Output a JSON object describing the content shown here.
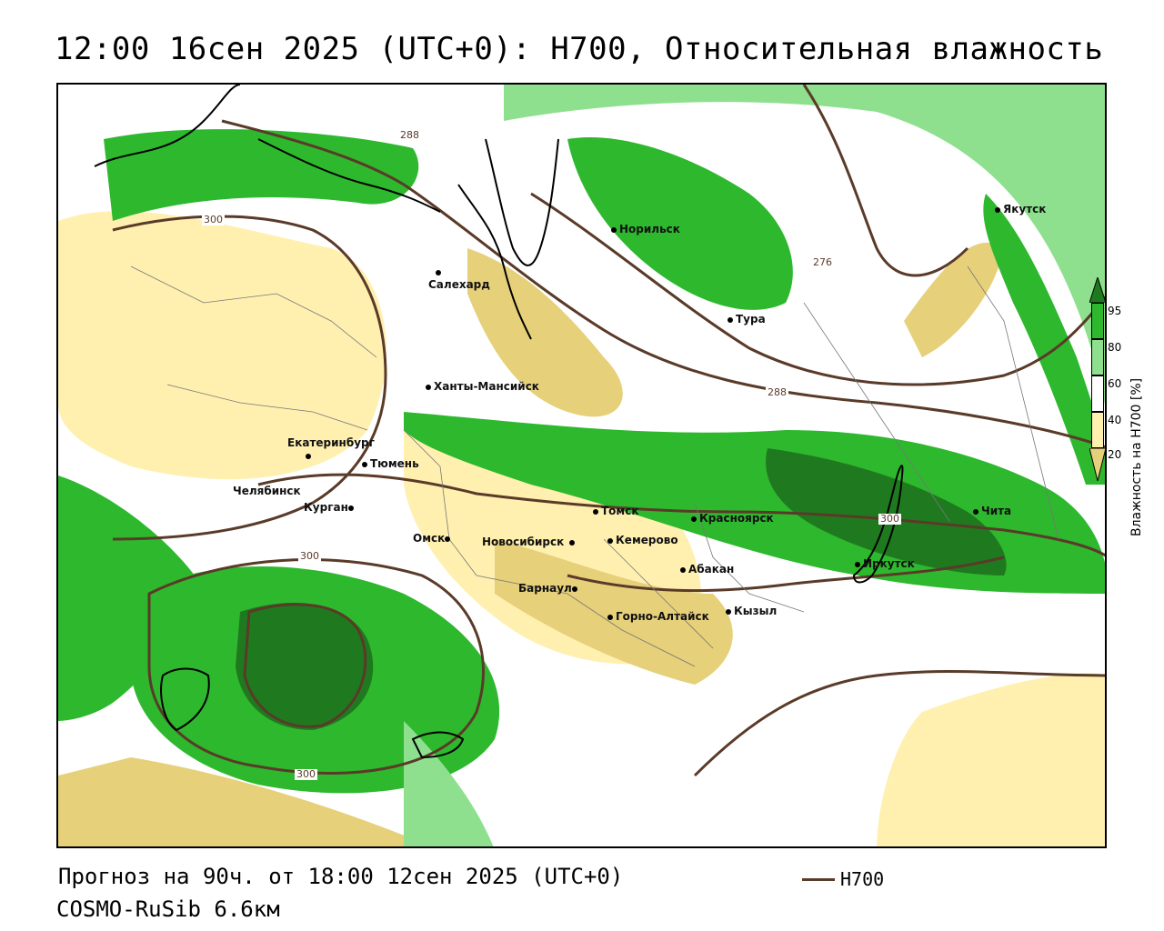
{
  "title": "12:00 16сен 2025 (UTC+0): Н700, Относительная влажность",
  "footer": {
    "forecast": "Прогноз на 90ч. от 18:00 12сен 2025 (UTC+0)",
    "model": "COSMO-RuSib 6.6км",
    "line_legend": "Н700"
  },
  "legend": {
    "title": "Влажность на Н700 [%]",
    "ticks": [
      "95",
      "80",
      "60",
      "40",
      "20"
    ],
    "colors": {
      "c95": "#1f7a1f",
      "c80": "#2eb82e",
      "c60": "#8ee08e",
      "c40": "#ffffff",
      "c20": "#fff0b0",
      "c0": "#e6d07a"
    }
  },
  "isoline_labels": [
    "288",
    "300",
    "276",
    "288",
    "300",
    "300",
    "300"
  ],
  "cities": [
    {
      "name": "Норильск"
    },
    {
      "name": "Якутск"
    },
    {
      "name": "Салехард"
    },
    {
      "name": "Тура"
    },
    {
      "name": "Ханты-Мансийск"
    },
    {
      "name": "Екатеринбург"
    },
    {
      "name": "Тюмень"
    },
    {
      "name": "Челябинск"
    },
    {
      "name": "Курган"
    },
    {
      "name": "Томск"
    },
    {
      "name": "Красноярск"
    },
    {
      "name": "Омск"
    },
    {
      "name": "Новосибирск"
    },
    {
      "name": "Кемерово"
    },
    {
      "name": "Абакан"
    },
    {
      "name": "Иркутск"
    },
    {
      "name": "Чита"
    },
    {
      "name": "Барнаул"
    },
    {
      "name": "Горно-Алтайск"
    },
    {
      "name": "Кызыл"
    }
  ]
}
